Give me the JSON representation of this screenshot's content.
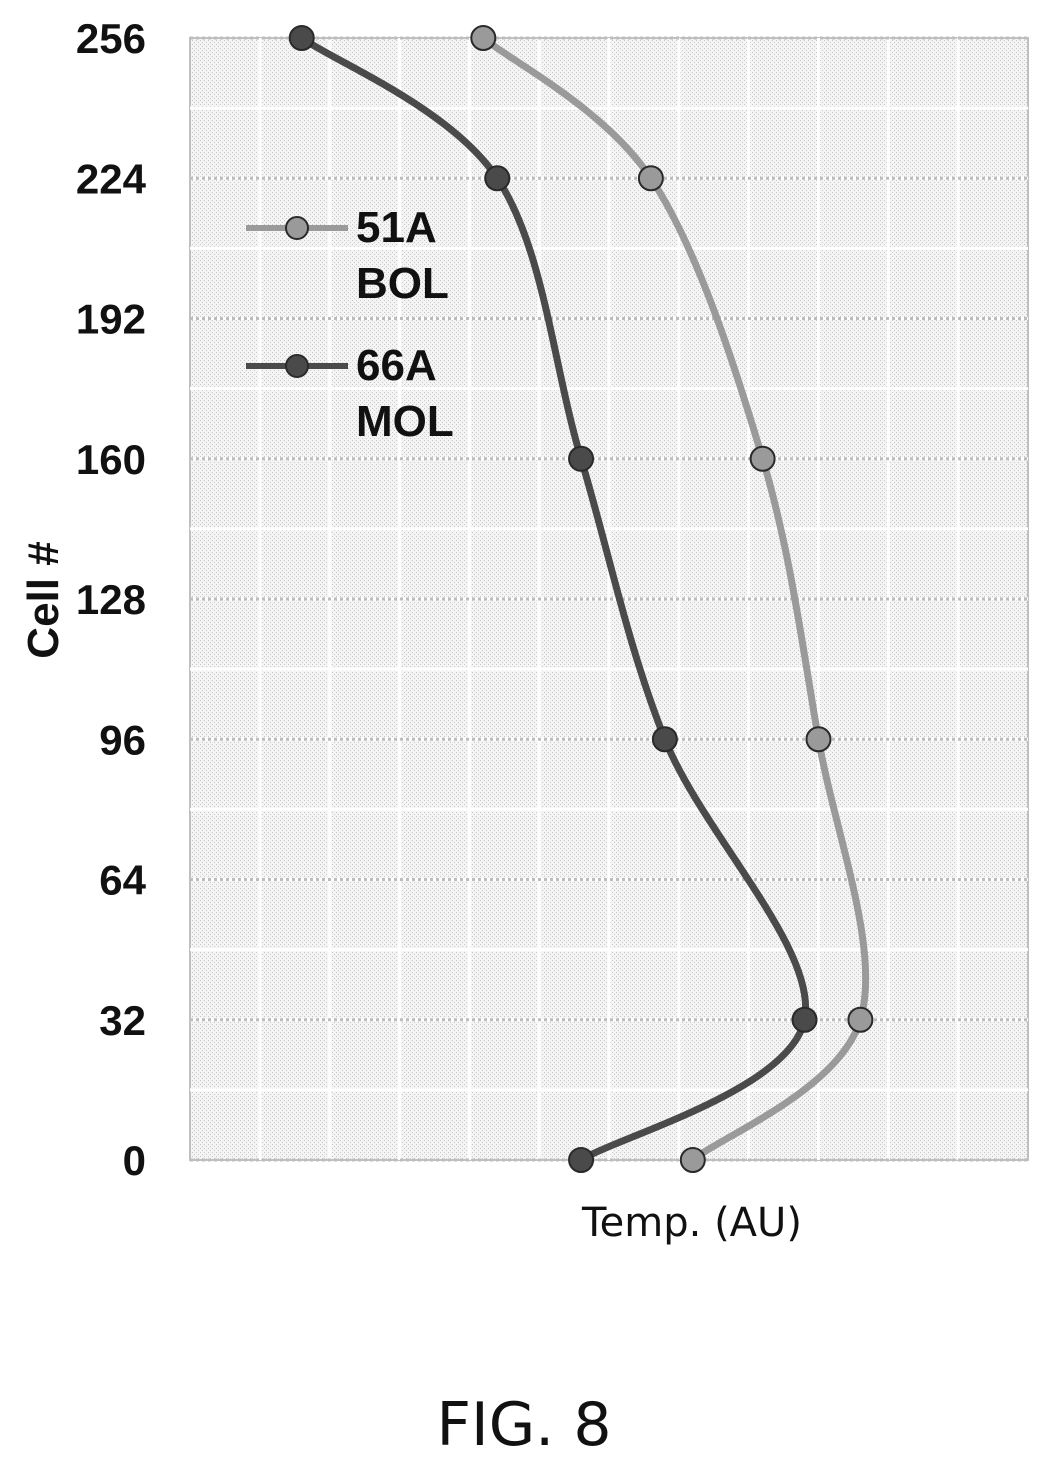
{
  "figure": {
    "caption": "FIG. 8"
  },
  "chart_data": {
    "type": "line",
    "orientation": "vertical-profile",
    "xlabel": "Temp. (AU)",
    "ylabel": "Cell #",
    "y_ticks": [
      0,
      32,
      64,
      96,
      128,
      160,
      192,
      224,
      256
    ],
    "ylim": [
      0,
      256
    ],
    "xlim": [
      0,
      6
    ],
    "x_ticks_shown": false,
    "grid": true,
    "legend": {
      "placement": "top-left"
    },
    "series": [
      {
        "name_line1": "51A",
        "name_line2": "BOL",
        "color": "#9a9a9a",
        "marker": "circle",
        "y": [
          0,
          32,
          96,
          160,
          224,
          256
        ],
        "x": [
          3.6,
          4.8,
          4.5,
          4.1,
          3.3,
          2.1
        ]
      },
      {
        "name_line1": "66A",
        "name_line2": "MOL",
        "color": "#4a4a4a",
        "marker": "circle",
        "y": [
          0,
          32,
          96,
          160,
          224,
          256
        ],
        "x": [
          2.8,
          4.4,
          3.4,
          2.8,
          2.2,
          0.8
        ]
      }
    ]
  }
}
